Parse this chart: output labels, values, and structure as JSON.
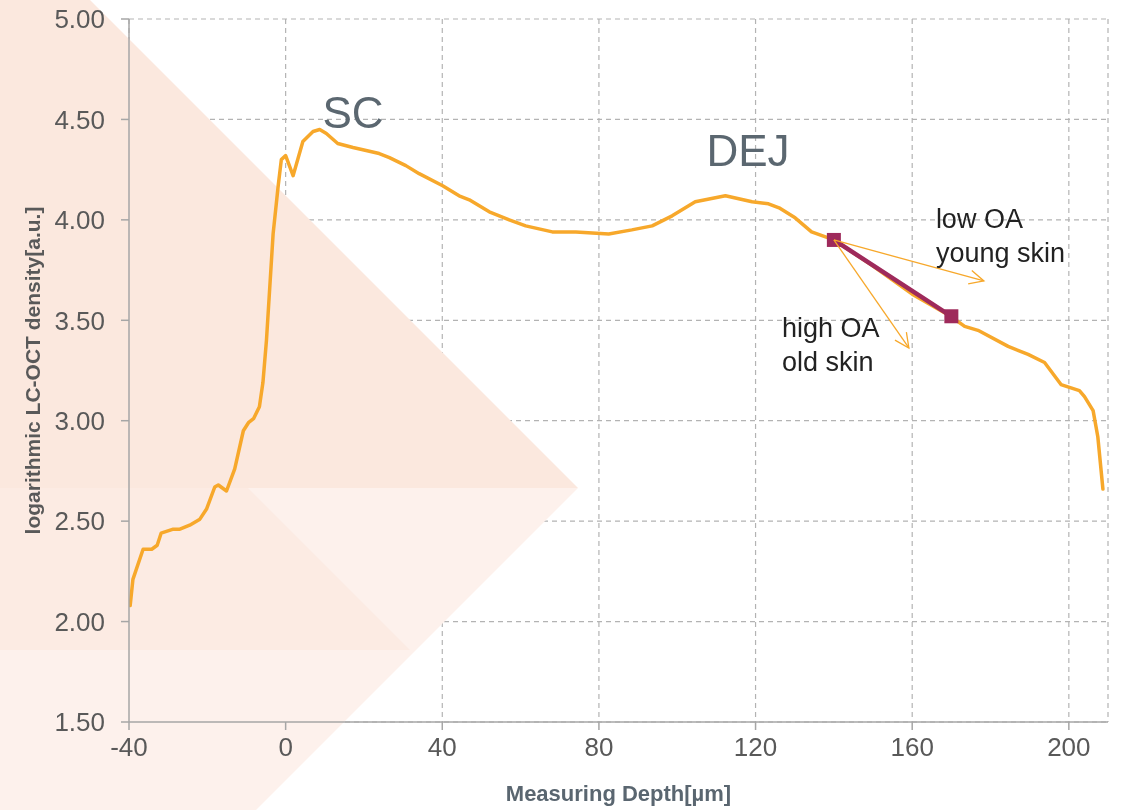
{
  "chart_data": {
    "type": "line",
    "xlabel": "Measuring Depth[µm]",
    "ylabel": "logarithmic LC-OCT density[a.u.]",
    "xlim": [
      -40,
      210
    ],
    "xticks": [
      -40,
      0,
      40,
      80,
      120,
      160,
      200
    ],
    "ylim": [
      1.5,
      5
    ],
    "yticks": [
      {
        "value": 1.5,
        "label": "1.50"
      },
      {
        "value": 2,
        "label": "2.00"
      },
      {
        "value": 2.5,
        "label": "2.50"
      },
      {
        "value": 3,
        "label": "3.00"
      },
      {
        "value": 3.5,
        "label": "3.50"
      },
      {
        "value": 4,
        "label": "4.00"
      },
      {
        "value": 4.5,
        "label": "4.50"
      },
      {
        "value": 5,
        "label": "5.00"
      }
    ],
    "grid": true,
    "marker": "none",
    "line_style": "solid",
    "series": [
      {
        "color": "#f7a82b",
        "x": [
          -39.7,
          -39.0,
          -36.4,
          -34.2,
          -32.8,
          -31.8,
          -28.7,
          -27.0,
          -24.5,
          -21.9,
          -20.2,
          -18.1,
          -17.2,
          -15.1,
          -13.0,
          -10.8,
          -9.5,
          -8.2,
          -6.7,
          -5.8,
          -4.9,
          -3.2,
          -1.9,
          -1.1,
          0,
          1.9,
          4.4,
          7.0,
          8.7,
          10.4,
          13.3,
          17.2,
          23.9,
          26.5,
          30.7,
          34.1,
          40.1,
          44.3,
          46.9,
          52.0,
          57.1,
          61.3,
          68.1,
          74.1,
          82.5,
          88.4,
          93.6,
          98.7,
          104.6,
          112.3,
          119.1,
          123.3,
          126.0,
          130.1,
          134.3,
          140,
          150,
          160,
          169.8,
          173.4,
          176.8,
          184.5,
          189.6,
          193.8,
          198.0,
          202.7,
          204.0,
          206.2,
          207.4,
          208.7
        ],
        "values": [
          2.08,
          2.21,
          2.36,
          2.36,
          2.38,
          2.44,
          2.46,
          2.46,
          2.48,
          2.51,
          2.56,
          2.67,
          2.68,
          2.65,
          2.76,
          2.95,
          2.99,
          3.01,
          3.07,
          3.19,
          3.4,
          3.93,
          4.17,
          4.3,
          4.32,
          4.22,
          4.39,
          4.44,
          4.45,
          4.43,
          4.38,
          4.36,
          4.33,
          4.31,
          4.27,
          4.23,
          4.17,
          4.12,
          4.1,
          4.04,
          4.0,
          3.97,
          3.94,
          3.94,
          3.93,
          3.95,
          3.97,
          4.02,
          4.09,
          4.12,
          4.09,
          4.08,
          4.06,
          4.01,
          3.94,
          3.9,
          3.77,
          3.63,
          3.52,
          3.47,
          3.45,
          3.37,
          3.33,
          3.29,
          3.18,
          3.15,
          3.12,
          3.05,
          2.92,
          2.66
        ]
      },
      {
        "color": "#9e2a5b",
        "x": [
          140,
          170
        ],
        "values": [
          3.9,
          3.52
        ],
        "marker": "square"
      }
    ],
    "annotations": [
      "SC",
      "DEJ",
      {
        "text": "low OA\nyoung skin",
        "x": 140,
        "y": 3.9
      },
      {
        "text": "high OA\nold skin",
        "x": 140,
        "y": 3.9
      }
    ]
  }
}
